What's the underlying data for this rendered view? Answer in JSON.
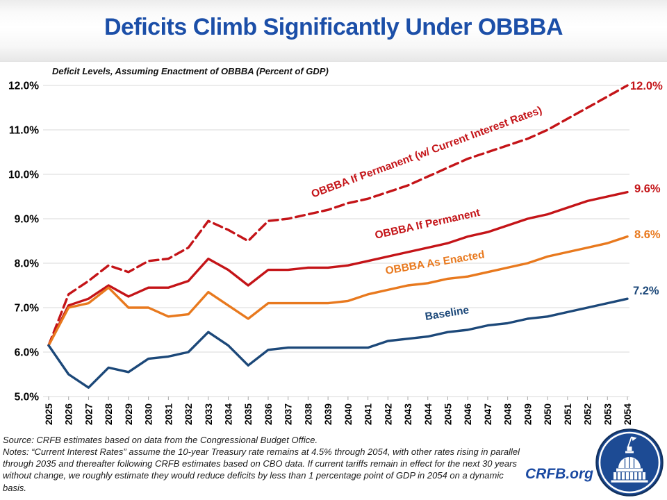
{
  "header": {
    "title": "Deficits Climb Significantly Under OBBBA"
  },
  "chart_data": {
    "type": "line",
    "title": "Deficits Climb Significantly Under OBBBA",
    "subtitle": "Deficit Levels, Assuming Enactment of OBBBA (Percent of GDP)",
    "xlabel": "",
    "ylabel": "Percent of GDP",
    "ylim": [
      5.0,
      12.0
    ],
    "ytick_step": 1.0,
    "ytick_labels": [
      "5.0%",
      "6.0%",
      "7.0%",
      "8.0%",
      "9.0%",
      "10.0%",
      "11.0%",
      "12.0%"
    ],
    "grid": true,
    "legend_position": "inline-line-labels",
    "x": [
      2025,
      2026,
      2027,
      2028,
      2029,
      2030,
      2031,
      2032,
      2033,
      2034,
      2035,
      2036,
      2037,
      2038,
      2039,
      2040,
      2041,
      2042,
      2043,
      2044,
      2045,
      2046,
      2047,
      2048,
      2049,
      2050,
      2051,
      2052,
      2053,
      2054
    ],
    "series": [
      {
        "name": "OBBBA If Permanent (w/ Current Interest Rates)",
        "slug": "current-rates",
        "color": "#c41418",
        "dashed": true,
        "end_label": "12.0%",
        "values": [
          6.15,
          7.3,
          7.6,
          7.95,
          7.8,
          8.05,
          8.1,
          8.35,
          8.95,
          8.75,
          8.5,
          8.95,
          9.0,
          9.1,
          9.2,
          9.35,
          9.45,
          9.6,
          9.75,
          9.95,
          10.15,
          10.35,
          10.5,
          10.65,
          10.8,
          11.0,
          11.25,
          11.5,
          11.75,
          12.0
        ]
      },
      {
        "name": "OBBBA If Permanent",
        "slug": "permanent",
        "color": "#c41418",
        "dashed": false,
        "end_label": "9.6%",
        "values": [
          6.15,
          7.05,
          7.2,
          7.5,
          7.25,
          7.45,
          7.45,
          7.6,
          8.1,
          7.85,
          7.5,
          7.85,
          7.85,
          7.9,
          7.9,
          7.95,
          8.05,
          8.15,
          8.25,
          8.35,
          8.45,
          8.6,
          8.7,
          8.85,
          9.0,
          9.1,
          9.25,
          9.4,
          9.5,
          9.6
        ]
      },
      {
        "name": "OBBBA As Enacted",
        "slug": "enacted",
        "color": "#e8791e",
        "dashed": false,
        "end_label": "8.6%",
        "values": [
          6.15,
          7.0,
          7.1,
          7.45,
          7.0,
          7.0,
          6.8,
          6.85,
          7.35,
          7.05,
          6.75,
          7.1,
          7.1,
          7.1,
          7.1,
          7.15,
          7.3,
          7.4,
          7.5,
          7.55,
          7.65,
          7.7,
          7.8,
          7.9,
          8.0,
          8.15,
          8.25,
          8.35,
          8.45,
          8.6
        ]
      },
      {
        "name": "Baseline",
        "slug": "baseline",
        "color": "#1c4879",
        "dashed": false,
        "end_label": "7.2%",
        "values": [
          6.15,
          5.5,
          5.2,
          5.65,
          5.55,
          5.85,
          5.9,
          6.0,
          6.45,
          6.15,
          5.7,
          6.05,
          6.1,
          6.1,
          6.1,
          6.1,
          6.1,
          6.25,
          6.3,
          6.35,
          6.45,
          6.5,
          6.6,
          6.65,
          6.75,
          6.8,
          6.9,
          7.0,
          7.1,
          7.2
        ]
      }
    ]
  },
  "footer": {
    "source": "Source: CRFB estimates based on data from the Congressional Budget Office.",
    "notes": "Notes: “Current Interest Rates” assume the 10-year Treasury rate remains at 4.5% through 2054, with other rates rising in parallel through 2035 and thereafter following CRFB estimates based on CBO data. If current tariffs remain in effect for the next 30 years without change, we roughly estimate they would reduce deficits by less than 1 percentage point of GDP in 2054 on a dynamic basis.",
    "brand": "CRFB.org"
  }
}
